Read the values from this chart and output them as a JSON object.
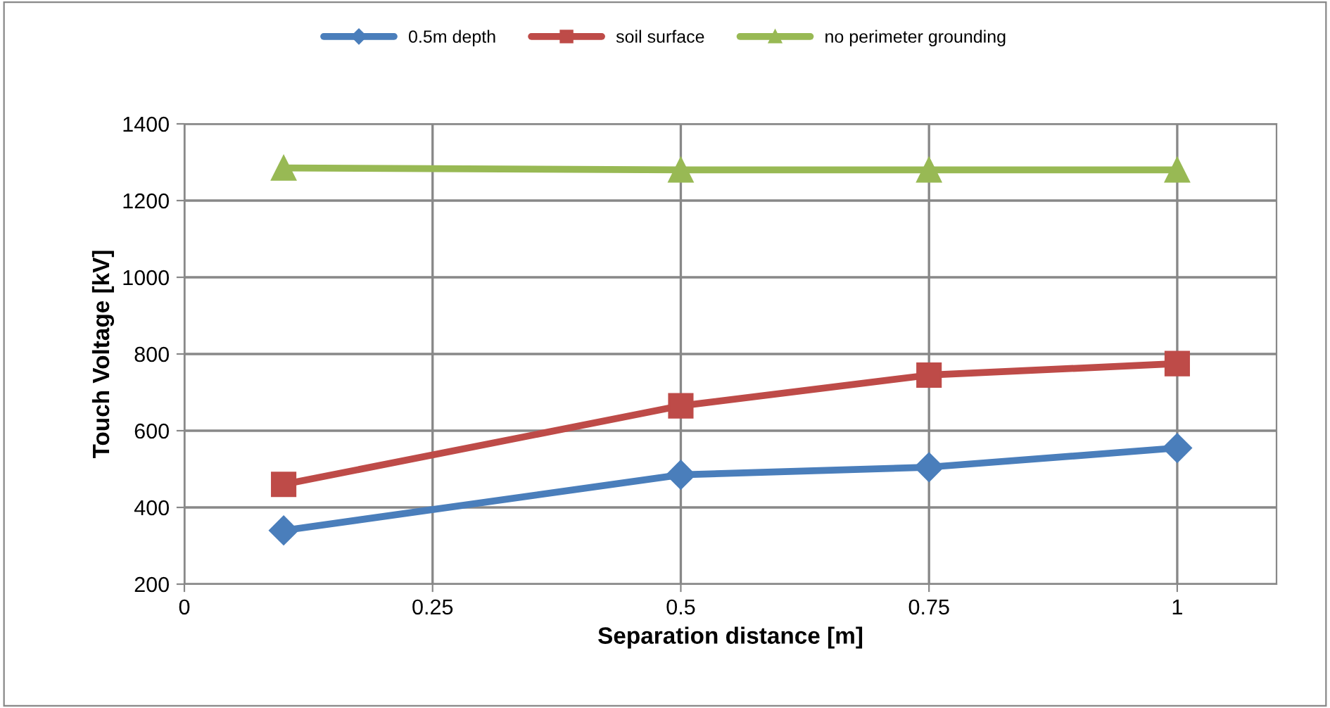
{
  "chart_data": {
    "type": "line",
    "xlabel": "Separation distance [m]",
    "ylabel": "Touch Voltage [kV]",
    "x": [
      0.1,
      0.5,
      0.75,
      1
    ],
    "series": [
      {
        "name": "0.5m depth",
        "color": "#4a7ebb",
        "values": [
          340,
          485,
          505,
          555
        ],
        "marker": "diamond"
      },
      {
        "name": "soil surface",
        "color": "#be4b48",
        "values": [
          460,
          665,
          745,
          775
        ],
        "marker": "square"
      },
      {
        "name": "no perimeter grounding",
        "color": "#98b954",
        "values": [
          1285,
          1280,
          1280,
          1280
        ],
        "marker": "triangle"
      }
    ],
    "xlim": [
      0,
      1.1
    ],
    "xticks": [
      0,
      0.25,
      0.5,
      0.75,
      1
    ],
    "ylim": [
      200,
      1400
    ],
    "yticks": [
      200,
      400,
      600,
      800,
      1000,
      1200,
      1400
    ],
    "grid": true,
    "legend": "top",
    "line_style": "solid"
  }
}
